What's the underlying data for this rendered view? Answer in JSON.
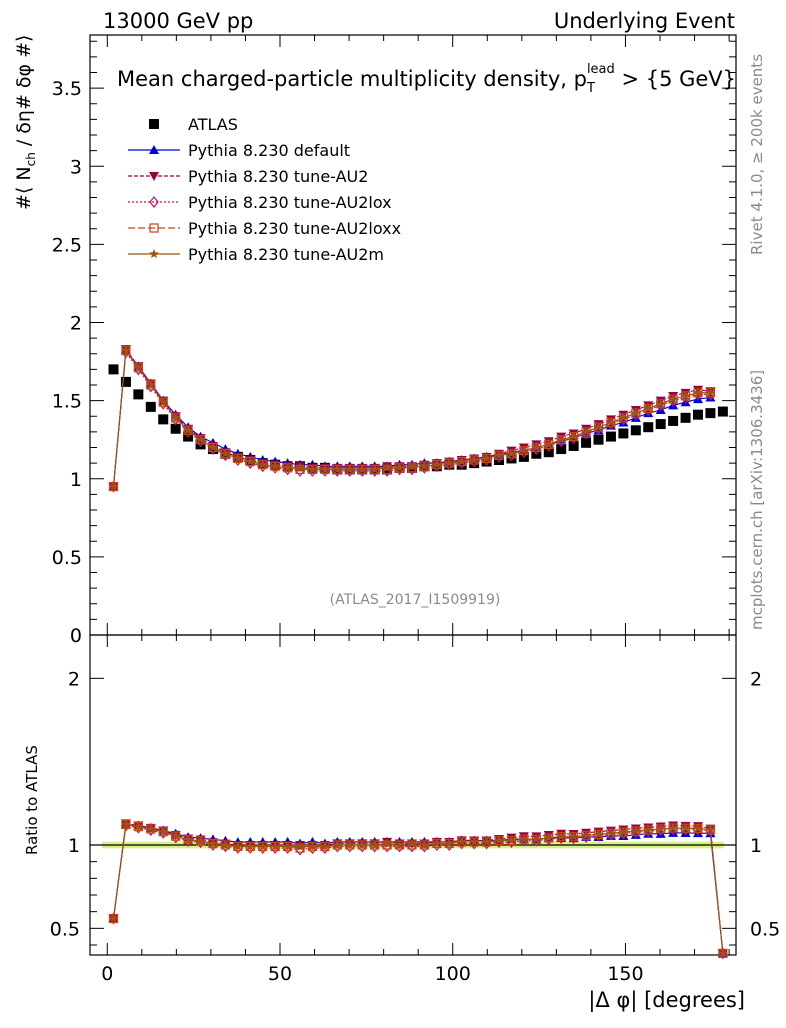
{
  "header": {
    "left": "13000 GeV pp",
    "right": "Underlying Event"
  },
  "side": {
    "top": "Rivet 4.1.0, ≥ 200k events",
    "bottom": "mcplots.cern.ch [arXiv:1306.3436]"
  },
  "chart_data": {
    "type": "scatter",
    "title": "Mean charged-particle multiplicity density, p_T^lead > {5 GeV}",
    "title_main": "Mean charged-particle multiplicity density, p",
    "title_sup": "lead",
    "title_sub": "T",
    "title_tail": " > {5 GeV}",
    "watermark": "(ATLAS_2017_I1509919)",
    "ylabel_main": "#⟨ N",
    "ylabel_sub": "ch",
    "ylabel_tail": " / δη# δφ #⟩",
    "ylabel_ratio": "Ratio to ATLAS",
    "xlabel": "|Δ φ| [degrees]",
    "xlim": [
      -5,
      182
    ],
    "ylim_main": [
      0,
      3.84
    ],
    "ylim_ratio": [
      0.34,
      2.26
    ],
    "x_ticks": [
      0,
      50,
      100,
      150
    ],
    "x_tick_labels": [
      "0",
      "50",
      "100",
      "150"
    ],
    "y_ticks_main": [
      0,
      0.5,
      1,
      1.5,
      2,
      2.5,
      3,
      3.5
    ],
    "y_tick_labels_main": [
      "0",
      "0.5",
      "1",
      "1.5",
      "2",
      "2.5",
      "3",
      "3.5"
    ],
    "y_ticks_ratio": [
      0.5,
      1,
      2
    ],
    "y_tick_labels_ratio": [
      "0.5",
      "1",
      "2"
    ],
    "legend_position": "top-left",
    "x": [
      1.8,
      5.4,
      9.0,
      12.6,
      16.2,
      19.8,
      23.4,
      27.0,
      30.6,
      34.2,
      37.8,
      41.4,
      45.0,
      48.6,
      52.2,
      55.8,
      59.4,
      63.0,
      66.6,
      70.2,
      73.8,
      77.4,
      81.0,
      84.6,
      88.2,
      91.8,
      95.4,
      99.0,
      102.6,
      106.2,
      109.8,
      113.4,
      117.0,
      120.6,
      124.2,
      127.8,
      131.4,
      135.0,
      138.6,
      142.2,
      145.8,
      149.4,
      153.0,
      156.6,
      160.2,
      163.8,
      167.4,
      171.0,
      174.6,
      178.2
    ],
    "atlas": [
      1.7,
      1.62,
      1.54,
      1.46,
      1.38,
      1.32,
      1.27,
      1.22,
      1.19,
      1.16,
      1.14,
      1.12,
      1.1,
      1.09,
      1.08,
      1.08,
      1.07,
      1.07,
      1.06,
      1.06,
      1.06,
      1.06,
      1.06,
      1.07,
      1.07,
      1.08,
      1.08,
      1.09,
      1.09,
      1.1,
      1.11,
      1.12,
      1.13,
      1.14,
      1.16,
      1.17,
      1.19,
      1.21,
      1.23,
      1.25,
      1.27,
      1.29,
      1.31,
      1.33,
      1.35,
      1.37,
      1.39,
      1.41,
      1.42,
      1.43
    ],
    "series": [
      {
        "name": "ATLAS",
        "color": "#000000",
        "marker": "square",
        "values": [
          1.7,
          1.62,
          1.54,
          1.46,
          1.38,
          1.32,
          1.27,
          1.22,
          1.19,
          1.16,
          1.14,
          1.12,
          1.1,
          1.09,
          1.08,
          1.08,
          1.07,
          1.07,
          1.06,
          1.06,
          1.06,
          1.06,
          1.06,
          1.07,
          1.07,
          1.08,
          1.08,
          1.09,
          1.09,
          1.1,
          1.11,
          1.12,
          1.13,
          1.14,
          1.16,
          1.17,
          1.19,
          1.21,
          1.23,
          1.25,
          1.27,
          1.29,
          1.31,
          1.33,
          1.35,
          1.37,
          1.39,
          1.41,
          1.42,
          1.43
        ]
      },
      {
        "name": "Pythia 8.230 default",
        "color": "#0000dd",
        "marker": "triangle-up",
        "dash": "",
        "values": [
          0.95,
          1.82,
          1.72,
          1.61,
          1.5,
          1.41,
          1.33,
          1.27,
          1.23,
          1.19,
          1.16,
          1.14,
          1.12,
          1.11,
          1.1,
          1.09,
          1.09,
          1.08,
          1.08,
          1.08,
          1.08,
          1.08,
          1.08,
          1.09,
          1.09,
          1.1,
          1.1,
          1.11,
          1.12,
          1.13,
          1.14,
          1.15,
          1.17,
          1.18,
          1.2,
          1.22,
          1.24,
          1.26,
          1.29,
          1.31,
          1.34,
          1.36,
          1.39,
          1.42,
          1.44,
          1.47,
          1.49,
          1.51,
          1.52,
          0.5
        ]
      },
      {
        "name": "Pythia 8.230 tune-AU2",
        "color": "#990044",
        "marker": "triangle-down",
        "dash": "4,2",
        "values": [
          0.95,
          1.83,
          1.72,
          1.61,
          1.5,
          1.4,
          1.32,
          1.26,
          1.21,
          1.17,
          1.14,
          1.12,
          1.1,
          1.09,
          1.08,
          1.08,
          1.07,
          1.07,
          1.07,
          1.07,
          1.07,
          1.07,
          1.08,
          1.08,
          1.08,
          1.09,
          1.1,
          1.11,
          1.12,
          1.13,
          1.14,
          1.16,
          1.18,
          1.2,
          1.22,
          1.24,
          1.27,
          1.29,
          1.32,
          1.35,
          1.38,
          1.41,
          1.44,
          1.47,
          1.5,
          1.53,
          1.55,
          1.57,
          1.56,
          0.5
        ]
      },
      {
        "name": "Pythia 8.230 tune-AU2lox",
        "color": "#cc1166",
        "marker": "diamond-open",
        "dash": "2,2",
        "values": [
          0.95,
          1.81,
          1.7,
          1.59,
          1.48,
          1.38,
          1.3,
          1.24,
          1.19,
          1.15,
          1.12,
          1.1,
          1.08,
          1.07,
          1.06,
          1.05,
          1.05,
          1.05,
          1.05,
          1.05,
          1.05,
          1.05,
          1.05,
          1.06,
          1.06,
          1.07,
          1.08,
          1.09,
          1.1,
          1.11,
          1.12,
          1.14,
          1.15,
          1.17,
          1.19,
          1.21,
          1.24,
          1.26,
          1.29,
          1.32,
          1.35,
          1.38,
          1.41,
          1.44,
          1.47,
          1.5,
          1.52,
          1.54,
          1.54,
          0.5
        ]
      },
      {
        "name": "Pythia 8.230 tune-AU2loxx",
        "color": "#cc4411",
        "marker": "square-open",
        "dash": "7,3",
        "values": [
          0.95,
          1.82,
          1.71,
          1.6,
          1.49,
          1.39,
          1.31,
          1.25,
          1.2,
          1.16,
          1.13,
          1.11,
          1.09,
          1.08,
          1.07,
          1.06,
          1.06,
          1.06,
          1.06,
          1.06,
          1.06,
          1.06,
          1.06,
          1.07,
          1.07,
          1.08,
          1.09,
          1.1,
          1.11,
          1.12,
          1.13,
          1.15,
          1.16,
          1.18,
          1.2,
          1.22,
          1.25,
          1.27,
          1.3,
          1.33,
          1.36,
          1.39,
          1.42,
          1.45,
          1.48,
          1.51,
          1.53,
          1.55,
          1.55,
          0.5
        ]
      },
      {
        "name": "Pythia 8.230 tune-AU2m",
        "color": "#995511",
        "marker": "star",
        "dash": "",
        "values": [
          0.95,
          1.82,
          1.71,
          1.6,
          1.49,
          1.39,
          1.31,
          1.25,
          1.2,
          1.16,
          1.13,
          1.11,
          1.09,
          1.08,
          1.07,
          1.07,
          1.06,
          1.06,
          1.06,
          1.06,
          1.06,
          1.06,
          1.07,
          1.07,
          1.08,
          1.08,
          1.09,
          1.1,
          1.11,
          1.12,
          1.13,
          1.15,
          1.16,
          1.18,
          1.2,
          1.22,
          1.25,
          1.27,
          1.3,
          1.33,
          1.36,
          1.39,
          1.42,
          1.45,
          1.48,
          1.51,
          1.53,
          1.55,
          1.55,
          0.5
        ]
      }
    ],
    "ratio_band_color": "#ccee66"
  }
}
